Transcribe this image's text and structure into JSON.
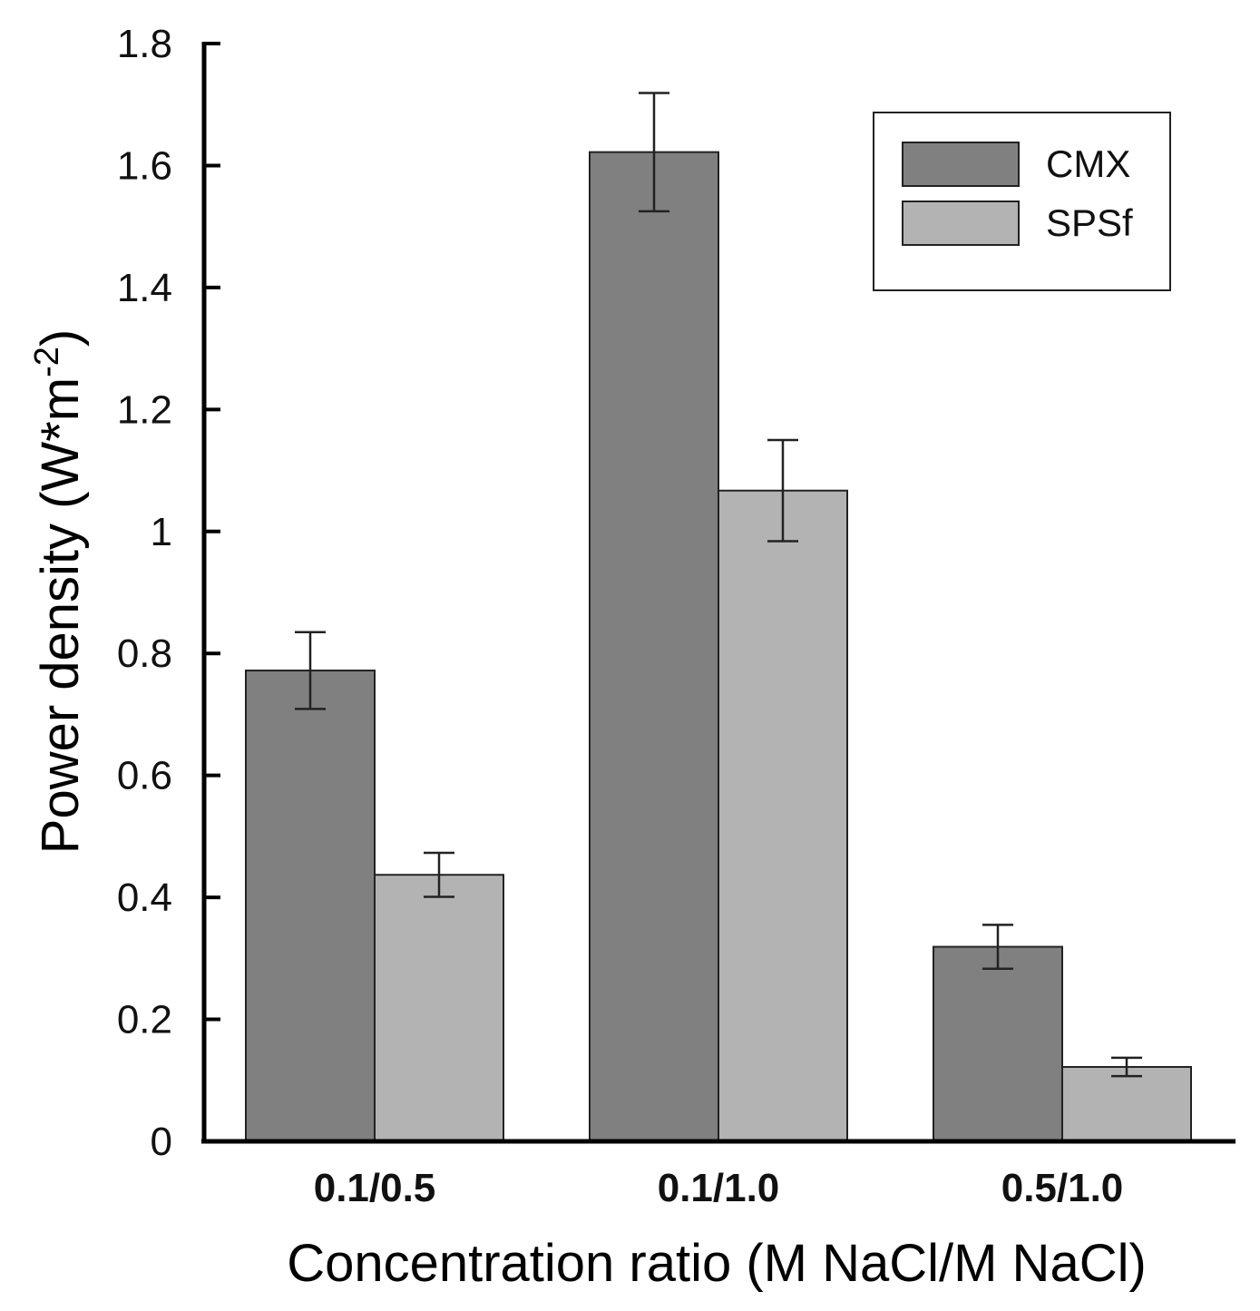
{
  "chart_data": {
    "type": "bar",
    "categories": [
      "0.1/0.5",
      "0.1/1.0",
      "0.5/1.0"
    ],
    "series": [
      {
        "name": "CMX",
        "values": [
          0.772,
          1.622,
          0.319
        ],
        "errors": [
          0.063,
          0.097,
          0.036
        ],
        "color": "#808080"
      },
      {
        "name": "SPSf",
        "values": [
          0.437,
          1.067,
          0.122
        ],
        "errors": [
          0.036,
          0.083,
          0.015
        ],
        "color": "#b3b3b3"
      }
    ],
    "title": "",
    "xlabel": "Concentration ratio (M NaCl/M NaCl)",
    "ylabel_main": "Power density (W*m",
    "ylabel_sup": "-2",
    "ylabel_end": ")",
    "ylim": [
      0,
      1.8
    ],
    "yticks": [
      0,
      0.2,
      0.4,
      0.6,
      0.8,
      1,
      1.2,
      1.4,
      1.6,
      1.8
    ],
    "ytick_labels": [
      "0",
      "0.2",
      "0.4",
      "0.6",
      "0.8",
      "1",
      "1.2",
      "1.4",
      "1.6",
      "1.8"
    ],
    "legend_position": "top-right",
    "grid": false
  }
}
